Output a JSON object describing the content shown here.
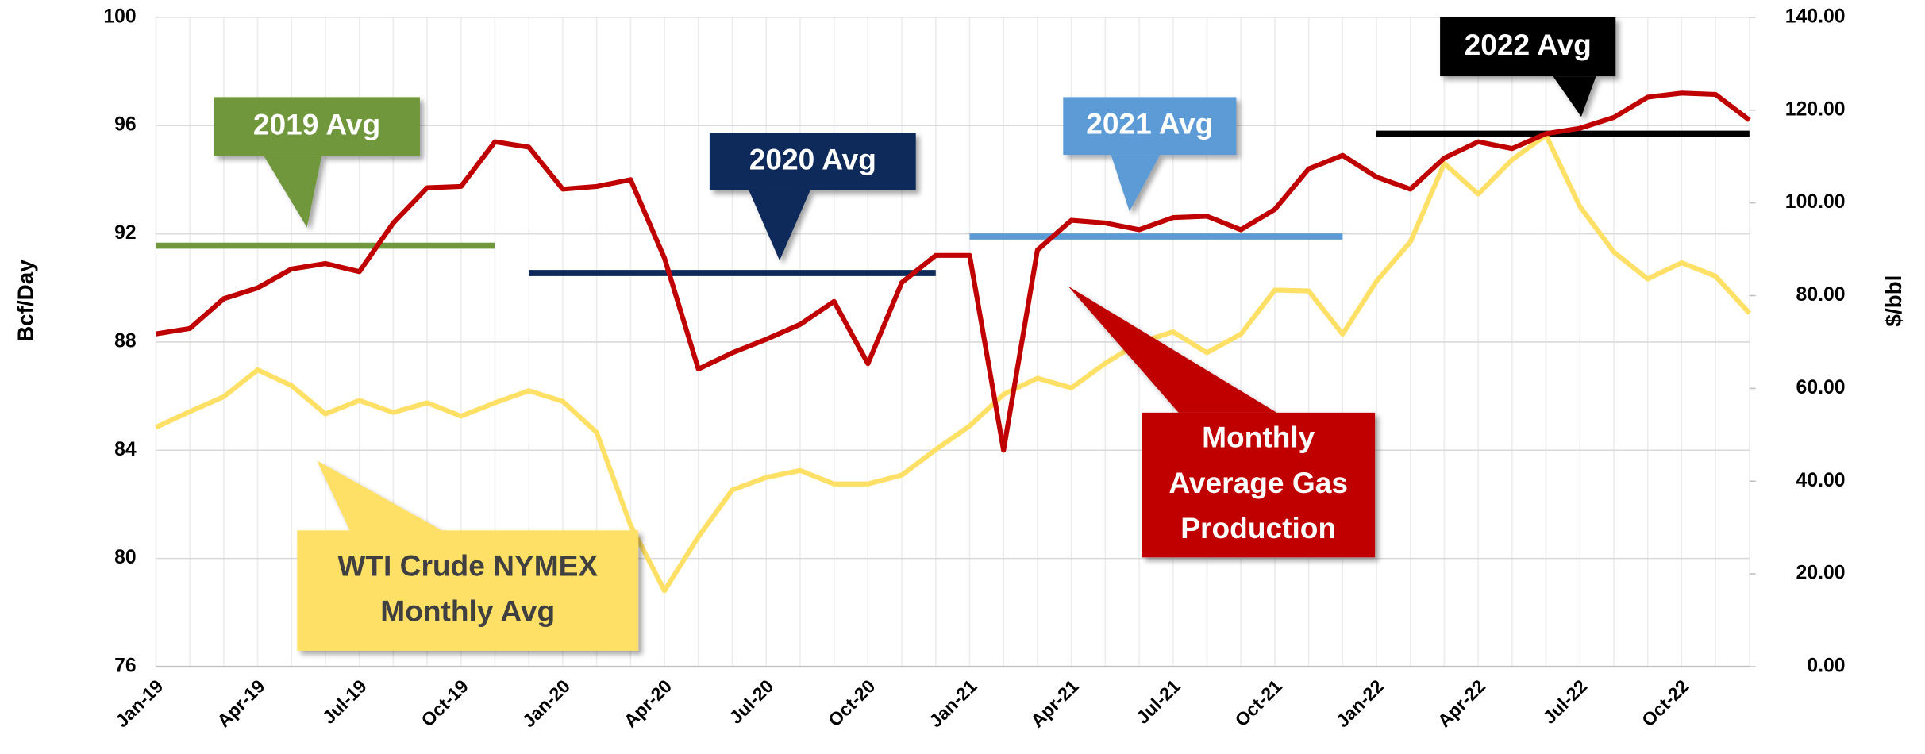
{
  "chart_data": {
    "type": "line",
    "y_label": "Bcf/Day",
    "y2_label": "$/bbl",
    "categories": [
      "Jan-19",
      null,
      null,
      "Apr-19",
      null,
      null,
      "Jul-19",
      null,
      null,
      "Oct-19",
      null,
      null,
      "Jan-20",
      null,
      null,
      "Apr-20",
      null,
      null,
      "Jul-20",
      null,
      null,
      "Oct-20",
      null,
      null,
      "Jan-21",
      null,
      null,
      "Apr-21",
      null,
      null,
      "Jul-21",
      null,
      null,
      "Oct-21",
      null,
      null,
      "Jan-22",
      null,
      null,
      "Apr-22",
      null,
      null,
      "Jul-22",
      null,
      null,
      "Oct-22",
      null,
      null
    ],
    "series": [
      {
        "name": "Monthly Average Gas Production",
        "color": "#c00000",
        "values": [
          88.3,
          88.5,
          89.6,
          90.0,
          90.7,
          90.9,
          90.6,
          92.4,
          93.7,
          93.75,
          95.4,
          95.2,
          93.65,
          93.75,
          94.0,
          91.1,
          87.0,
          87.6,
          88.1,
          88.65,
          89.5,
          87.2,
          90.2,
          91.2,
          91.2,
          84.0,
          91.4,
          92.5,
          92.4,
          92.15,
          92.6,
          92.65,
          92.15,
          92.9,
          94.4,
          94.9,
          94.1,
          93.65,
          94.8,
          95.4,
          95.15,
          95.7,
          95.9,
          96.3,
          97.05,
          97.2,
          97.15,
          96.2
        ]
      },
      {
        "name": "WTI Crude NYMEX Monthly Avg",
        "color": "#ffe066",
        "axis": "y2",
        "values": [
          51.6,
          55,
          58.2,
          64,
          60.6,
          54.5,
          57.4,
          54.8,
          56.9,
          54,
          56.9,
          59.5,
          57.2,
          50.5,
          30.5,
          16.4,
          28,
          38.1,
          40.8,
          42.3,
          39.4,
          39.4,
          41.3,
          46.8,
          51.9,
          58.7,
          62.2,
          60.1,
          65.4,
          69.9,
          72.2,
          67.7,
          71.7,
          81.2,
          81,
          71.7,
          83.1,
          91.6,
          108.5,
          101.9,
          109.3,
          114.6,
          99.2,
          89.4,
          83.6,
          87.1,
          84.2,
          76.2
        ]
      }
    ],
    "averages": [
      {
        "name": "2019 Avg",
        "color": "#70973a",
        "value": 91.56
      },
      {
        "name": "2020 Avg",
        "color": "#0e2a5a",
        "value": 90.55
      },
      {
        "name": "2021 Avg",
        "color": "#5b9bd5",
        "value": 91.9
      },
      {
        "name": "2022 Avg",
        "color": "#000000",
        "value": 95.7
      }
    ],
    "annotations": [
      {
        "lines": [
          "2019 Avg"
        ],
        "color": "#70973a",
        "text_color": "#ffffff"
      },
      {
        "lines": [
          "2020 Avg"
        ],
        "color": "#0e2a5a",
        "text_color": "#ffffff"
      },
      {
        "lines": [
          "2021 Avg"
        ],
        "color": "#5b9bd5",
        "text_color": "#ffffff"
      },
      {
        "lines": [
          "2022 Avg"
        ],
        "color": "#000000",
        "text_color": "#ffffff"
      },
      {
        "lines": [
          "Monthly",
          "Average Gas",
          "Production"
        ],
        "color": "#c00000",
        "text_color": "#ffffff"
      },
      {
        "lines": [
          "WTI Crude NYMEX",
          "Monthly Avg"
        ],
        "color": "#ffe066",
        "text_color": "#404040"
      }
    ],
    "ylim": [
      76,
      100
    ],
    "yticks": [
      76,
      80,
      84,
      88,
      92,
      96,
      100
    ],
    "y2lim": [
      0,
      140
    ],
    "y2ticks": [
      {
        "value": 0,
        "label": "0.00"
      },
      {
        "value": 20,
        "label": "20.00"
      },
      {
        "value": 40,
        "label": "40.00"
      },
      {
        "value": 60,
        "label": "60.00"
      },
      {
        "value": 80,
        "label": "80.00"
      },
      {
        "value": 100,
        "label": "100.00"
      },
      {
        "value": 120,
        "label": "120.00"
      },
      {
        "value": 140,
        "label": "140.00"
      }
    ],
    "grid": true
  }
}
